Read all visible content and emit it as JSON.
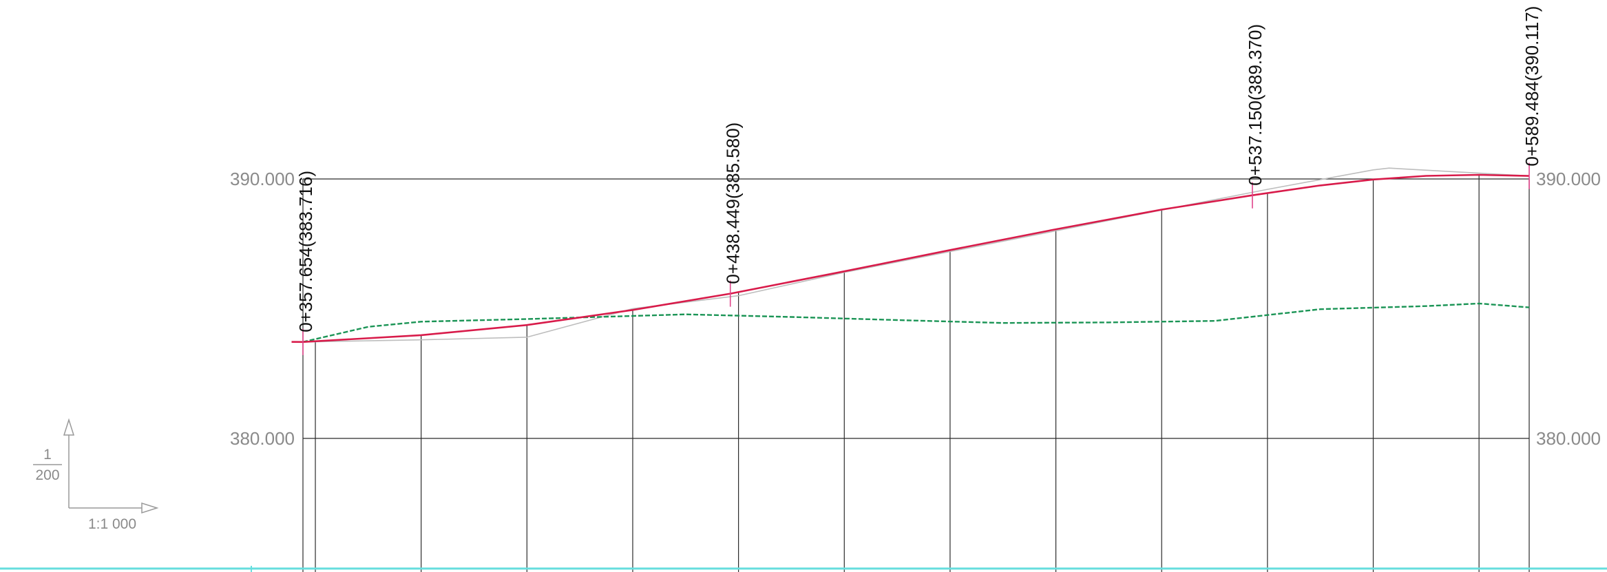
{
  "elevation_axis": {
    "labels": [
      "390.000",
      "380.000"
    ],
    "values": [
      390,
      380
    ]
  },
  "chainage_grid": {
    "start": 357.654,
    "end": 589.484,
    "first_regular": 360,
    "step": 20
  },
  "station_labels": [
    {
      "chainage": 357.654,
      "text": "0+357.654(383.716)"
    },
    {
      "chainage": 438.449,
      "text": "0+438.449(385.580)"
    },
    {
      "chainage": 537.15,
      "text": "0+537.150(389.370)"
    },
    {
      "chainage": 589.484,
      "text": "0+589.484(390.117)"
    }
  ],
  "scale_indicator": {
    "vertical_numerator": "1",
    "vertical_denominator": "200",
    "horizontal": "1:1 000"
  },
  "chart_data": {
    "type": "line",
    "x_unit": "chainage",
    "y_unit": "elevation",
    "xlim": [
      357.654,
      589.484
    ],
    "ylim": [
      374.85,
      390.0
    ],
    "grid": true,
    "series": [
      {
        "key": "design_profile",
        "color": "#d81b4a",
        "style": "solid",
        "x": [
          355.5,
          357.654,
          380,
          400,
          420,
          438.449,
          460,
          480,
          500,
          520,
          537.15,
          550,
          560,
          570,
          580,
          589.484
        ],
        "y": [
          383.72,
          383.716,
          383.98,
          384.37,
          384.95,
          385.58,
          386.44,
          387.26,
          388.06,
          388.82,
          389.37,
          389.75,
          389.98,
          390.12,
          390.16,
          390.117
        ]
      },
      {
        "key": "existing_ground",
        "color": "#1a9455",
        "style": "dashed",
        "x": [
          357.654,
          370,
          380,
          400,
          420,
          430,
          450,
          470,
          490,
          510,
          530,
          550,
          570,
          580,
          589.484
        ],
        "y": [
          383.716,
          384.3,
          384.5,
          384.6,
          384.72,
          384.78,
          384.68,
          384.56,
          384.45,
          384.47,
          384.53,
          384.98,
          385.1,
          385.2,
          385.05
        ]
      },
      {
        "key": "reference_line",
        "color": "#bdbdbd",
        "style": "solid",
        "x": [
          357.654,
          380,
          400,
          420,
          440,
          460,
          480,
          500,
          520,
          540,
          560,
          563,
          589.484
        ],
        "y": [
          383.716,
          383.8,
          383.9,
          385.0,
          385.5,
          386.4,
          387.2,
          388.0,
          388.8,
          389.6,
          390.35,
          390.42,
          390.117
        ]
      }
    ]
  }
}
